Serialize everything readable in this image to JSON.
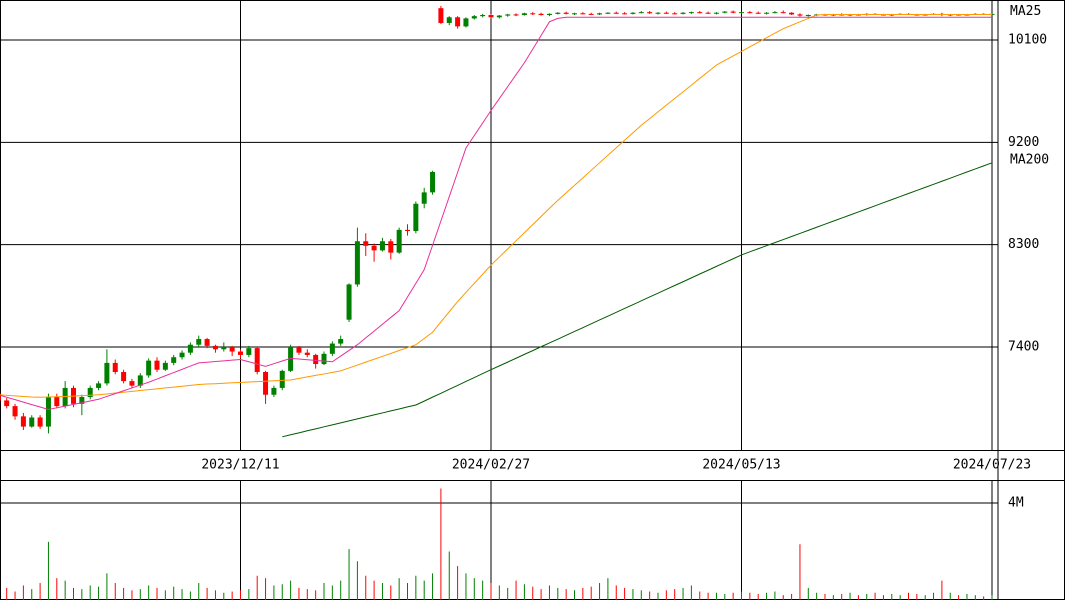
{
  "chart_data": {
    "type": "candlestick",
    "categories": [
      null,
      null,
      null,
      null,
      null,
      null,
      null,
      null,
      null,
      null,
      null,
      null,
      null,
      null,
      null,
      null,
      null,
      null,
      null,
      null,
      null,
      null,
      null,
      null,
      null,
      null,
      null,
      null,
      null,
      "2023/12/11",
      null,
      null,
      null,
      null,
      null,
      null,
      null,
      null,
      null,
      null,
      null,
      null,
      null,
      null,
      null,
      null,
      null,
      null,
      null,
      null,
      null,
      null,
      null,
      null,
      null,
      null,
      null,
      null,
      null,
      "2024/02/27",
      null,
      null,
      null,
      null,
      null,
      null,
      null,
      null,
      null,
      null,
      null,
      null,
      null,
      null,
      null,
      null,
      null,
      null,
      null,
      null,
      null,
      null,
      null,
      null,
      null,
      null,
      null,
      null,
      null,
      "2024/05/13",
      null,
      null,
      null,
      null,
      null,
      null,
      null,
      null,
      null,
      null,
      null,
      null,
      null,
      null,
      null,
      null,
      null,
      null,
      null,
      null,
      null,
      null,
      null,
      null,
      null,
      null,
      null,
      null,
      null,
      "2024/07/23"
    ],
    "up_color": "#008000",
    "down_color": "#ff0000",
    "ohlc": [
      [
        6990,
        7010,
        6900,
        6930
      ],
      [
        6930,
        6950,
        6860,
        6880
      ],
      [
        6880,
        6900,
        6760,
        6790
      ],
      [
        6790,
        6820,
        6670,
        6700
      ],
      [
        6700,
        6800,
        6690,
        6780
      ],
      [
        6780,
        6800,
        6680,
        6700
      ],
      [
        6700,
        6990,
        6640,
        6960
      ],
      [
        6960,
        6990,
        6860,
        6880
      ],
      [
        6880,
        7100,
        6860,
        7040
      ],
      [
        7040,
        7060,
        6870,
        6900
      ],
      [
        6900,
        6980,
        6800,
        6960
      ],
      [
        6960,
        7060,
        6940,
        7040
      ],
      [
        7040,
        7100,
        7020,
        7080
      ],
      [
        7080,
        7380,
        7060,
        7260
      ],
      [
        7260,
        7290,
        7160,
        7180
      ],
      [
        7180,
        7200,
        7080,
        7100
      ],
      [
        7100,
        7120,
        7040,
        7060
      ],
      [
        7060,
        7170,
        7040,
        7150
      ],
      [
        7150,
        7300,
        7130,
        7280
      ],
      [
        7280,
        7310,
        7180,
        7200
      ],
      [
        7200,
        7280,
        7190,
        7260
      ],
      [
        7260,
        7330,
        7240,
        7310
      ],
      [
        7310,
        7370,
        7290,
        7350
      ],
      [
        7350,
        7440,
        7330,
        7420
      ],
      [
        7420,
        7500,
        7400,
        7470
      ],
      [
        7470,
        7480,
        7390,
        7410
      ],
      [
        7410,
        7420,
        7350,
        7380
      ],
      [
        7380,
        7440,
        7360,
        7400
      ],
      [
        7400,
        7410,
        7320,
        7360
      ],
      [
        7360,
        7380,
        7300,
        7330
      ],
      [
        7330,
        7410,
        7310,
        7390
      ],
      [
        7390,
        7400,
        7160,
        7180
      ],
      [
        7180,
        7190,
        6900,
        6980
      ],
      [
        6980,
        7060,
        6960,
        7040
      ],
      [
        7040,
        7200,
        7020,
        7190
      ],
      [
        7190,
        7420,
        7180,
        7400
      ],
      [
        7400,
        7410,
        7330,
        7350
      ],
      [
        7350,
        7380,
        7310,
        7330
      ],
      [
        7330,
        7340,
        7210,
        7250
      ],
      [
        7250,
        7360,
        7240,
        7340
      ],
      [
        7340,
        7450,
        7320,
        7430
      ],
      [
        7430,
        7500,
        7410,
        7470
      ],
      [
        7640,
        7960,
        7620,
        7950
      ],
      [
        7950,
        8450,
        7930,
        8330
      ],
      [
        8330,
        8400,
        8200,
        8290
      ],
      [
        8290,
        8310,
        8150,
        8250
      ],
      [
        8250,
        8360,
        8240,
        8330
      ],
      [
        8330,
        8350,
        8170,
        8230
      ],
      [
        8230,
        8450,
        8220,
        8430
      ],
      [
        8430,
        8480,
        8380,
        8420
      ],
      [
        8420,
        8680,
        8400,
        8660
      ],
      [
        8660,
        8800,
        8620,
        8760
      ],
      [
        8760,
        8950,
        8740,
        8940
      ],
      [
        10380,
        10400,
        10240,
        10250
      ],
      [
        10250,
        10310,
        10230,
        10300
      ],
      [
        10300,
        10310,
        10200,
        10220
      ],
      [
        10220,
        10300,
        10210,
        10290
      ],
      [
        10290,
        10320,
        10280,
        10310
      ],
      [
        10310,
        10330,
        10300,
        10320
      ],
      [
        10320,
        10330,
        10290,
        10300
      ],
      [
        10300,
        10320,
        10290,
        10315
      ],
      [
        10315,
        10330,
        10305,
        10325
      ],
      [
        10325,
        10335,
        10310,
        10320
      ],
      [
        10320,
        10340,
        10315,
        10335
      ],
      [
        10335,
        10345,
        10320,
        10330
      ],
      [
        10330,
        10340,
        10315,
        10320
      ],
      [
        10320,
        10335,
        10310,
        10330
      ],
      [
        10330,
        10345,
        10325,
        10340
      ],
      [
        10340,
        10350,
        10325,
        10330
      ],
      [
        10330,
        10340,
        10320,
        10335
      ],
      [
        10335,
        10345,
        10325,
        10330
      ],
      [
        10330,
        10340,
        10320,
        10325
      ],
      [
        10325,
        10340,
        10320,
        10335
      ],
      [
        10335,
        10345,
        10330,
        10340
      ],
      [
        10340,
        10350,
        10330,
        10335
      ],
      [
        10335,
        10345,
        10325,
        10330
      ],
      [
        10330,
        10345,
        10325,
        10340
      ],
      [
        10340,
        10355,
        10335,
        10345
      ],
      [
        10345,
        10355,
        10330,
        10335
      ],
      [
        10335,
        10345,
        10325,
        10340
      ],
      [
        10340,
        10350,
        10330,
        10335
      ],
      [
        10335,
        10345,
        10325,
        10330
      ],
      [
        10330,
        10345,
        10325,
        10340
      ],
      [
        10340,
        10350,
        10330,
        10345
      ],
      [
        10345,
        10355,
        10335,
        10340
      ],
      [
        10340,
        10350,
        10330,
        10335
      ],
      [
        10335,
        10345,
        10325,
        10340
      ],
      [
        10340,
        10355,
        10335,
        10350
      ],
      [
        10350,
        10360,
        10335,
        10340
      ],
      [
        10340,
        10350,
        10330,
        10345
      ],
      [
        10345,
        10355,
        10335,
        10340
      ],
      [
        10340,
        10350,
        10330,
        10335
      ],
      [
        10335,
        10345,
        10325,
        10340
      ],
      [
        10340,
        10355,
        10335,
        10345
      ],
      [
        10345,
        10360,
        10335,
        10340
      ],
      [
        10340,
        10345,
        10320,
        10325
      ],
      [
        10325,
        10335,
        10305,
        10315
      ],
      [
        10315,
        10325,
        10305,
        10320
      ],
      [
        10320,
        10330,
        10310,
        10325
      ],
      [
        10325,
        10330,
        10315,
        10320
      ],
      [
        10320,
        10330,
        10310,
        10325
      ],
      [
        10325,
        10335,
        10315,
        10320
      ],
      [
        10320,
        10330,
        10310,
        10325
      ],
      [
        10325,
        10330,
        10315,
        10320
      ],
      [
        10320,
        10335,
        10315,
        10330
      ],
      [
        10330,
        10335,
        10320,
        10325
      ],
      [
        10325,
        10330,
        10315,
        10320
      ],
      [
        10320,
        10330,
        10310,
        10325
      ],
      [
        10325,
        10335,
        10320,
        10330
      ],
      [
        10330,
        10335,
        10320,
        10325
      ],
      [
        10325,
        10330,
        10315,
        10320
      ],
      [
        10320,
        10330,
        10315,
        10325
      ],
      [
        10325,
        10335,
        10320,
        10330
      ],
      [
        10330,
        10340,
        10310,
        10320
      ],
      [
        10320,
        10330,
        10310,
        10325
      ],
      [
        10325,
        10330,
        10315,
        10320
      ],
      [
        10320,
        10330,
        10315,
        10325
      ],
      [
        10325,
        10335,
        10320,
        10330
      ],
      [
        10330,
        10335,
        10320,
        10325
      ],
      [
        10325,
        10335,
        10320,
        10330
      ]
    ],
    "series": [
      {
        "name": "MA25",
        "color": "#ff9900",
        "values": [
          6980,
          6975,
          6970,
          6965,
          6960,
          6958,
          6960,
          6962,
          6965,
          6968,
          6972,
          6976,
          6980,
          6987,
          6995,
          7002,
          7010,
          7017,
          7025,
          7032,
          7040,
          7047,
          7055,
          7062,
          7070,
          7074,
          7077,
          7081,
          7085,
          7088,
          7092,
          7095,
          7099,
          7103,
          7106,
          7110,
          7123,
          7137,
          7150,
          7163,
          7177,
          7190,
          7216,
          7241,
          7267,
          7292,
          7318,
          7343,
          7369,
          7394,
          7420,
          7475,
          7530,
          7620,
          7710,
          7800,
          7880,
          7960,
          8040,
          8120,
          8191,
          8263,
          8334,
          8405,
          8476,
          8548,
          8619,
          8690,
          8756,
          8822,
          8888,
          8954,
          9020,
          9086,
          9152,
          9218,
          9284,
          9350,
          9409,
          9468,
          9527,
          9586,
          9644,
          9703,
          9762,
          9821,
          9880,
          9920,
          9960,
          10000,
          10040,
          10080,
          10120,
          10160,
          10200,
          10230,
          10260,
          10290,
          10320,
          10325,
          10325,
          10325,
          10325,
          10325,
          10325,
          10325,
          10325,
          10325,
          10325,
          10325,
          10325,
          10325,
          10325,
          10325,
          10325,
          10325,
          10325,
          10325,
          10325,
          10325
        ]
      },
      {
        "name": "MA200",
        "color": "#005a00",
        "values": [
          null,
          null,
          null,
          null,
          null,
          null,
          null,
          null,
          null,
          null,
          null,
          null,
          null,
          null,
          null,
          null,
          null,
          null,
          null,
          null,
          null,
          null,
          null,
          null,
          null,
          null,
          null,
          null,
          null,
          null,
          null,
          null,
          null,
          null,
          6610,
          6628,
          6645,
          6663,
          6680,
          6698,
          6715,
          6733,
          6750,
          6768,
          6785,
          6803,
          6820,
          6838,
          6855,
          6873,
          6890,
          6924,
          6959,
          6993,
          7028,
          7062,
          7097,
          7131,
          7166,
          7200,
          7234,
          7267,
          7301,
          7335,
          7368,
          7402,
          7436,
          7469,
          7503,
          7537,
          7570,
          7604,
          7638,
          7671,
          7705,
          7739,
          7772,
          7806,
          7840,
          7873,
          7907,
          7941,
          7974,
          8008,
          8042,
          8075,
          8109,
          8143,
          8176,
          8210,
          8237,
          8264,
          8291,
          8318,
          8345,
          8372,
          8399,
          8426,
          8453,
          8480,
          8507,
          8534,
          8561,
          8588,
          8615,
          8642,
          8669,
          8696,
          8723,
          8750,
          8777,
          8804,
          8831,
          8858,
          8885,
          8912,
          8939,
          8966,
          8993,
          9020
        ]
      },
      {
        "color": "#e8309a",
        "values": [
          6980,
          6958,
          6937,
          6915,
          6893,
          6872,
          6850,
          6865,
          6880,
          6895,
          6910,
          6925,
          6940,
          6965,
          6990,
          7015,
          7040,
          7065,
          7090,
          7118,
          7147,
          7175,
          7203,
          7232,
          7260,
          7266,
          7272,
          7278,
          7284,
          7290,
          7270,
          7250,
          7230,
          7253,
          7277,
          7300,
          7294,
          7288,
          7282,
          7276,
          7270,
          7320,
          7370,
          7420,
          7480,
          7540,
          7600,
          7660,
          7720,
          7840,
          7960,
          8080,
          8294,
          8508,
          8722,
          8936,
          9150,
          9260,
          9370,
          9480,
          9585,
          9690,
          9795,
          9900,
          10020,
          10140,
          10260,
          10290,
          10300,
          10300,
          10300,
          10300,
          10300,
          10300,
          10300,
          10300,
          10300,
          10300,
          10300,
          10300,
          10300,
          10300,
          10300,
          10300,
          10300,
          10300,
          10300,
          10300,
          10300,
          10300,
          10300,
          10300,
          10300,
          10300,
          10300,
          10300,
          10300,
          10300,
          10300,
          10300,
          10300,
          10300,
          10300,
          10300,
          10300,
          10300,
          10300,
          10300,
          10300,
          10300,
          10300,
          10300,
          10300,
          10300,
          10300,
          10300,
          10300,
          10300,
          10300,
          10300
        ]
      }
    ],
    "ylim": [
      6494,
      10452
    ],
    "yticks": [
      7400,
      8300,
      9200,
      10100
    ],
    "grid": true,
    "volume": {
      "values": [
        400000,
        500000,
        350000,
        600000,
        450000,
        700000,
        2400000,
        900000,
        800000,
        500000,
        450000,
        600000,
        550000,
        1100000,
        700000,
        500000,
        400000,
        450000,
        600000,
        500000,
        400000,
        550000,
        450000,
        350000,
        700000,
        500000,
        400000,
        300000,
        350000,
        400000,
        450000,
        1000000,
        900000,
        600000,
        650000,
        800000,
        500000,
        450000,
        400000,
        700000,
        600000,
        800000,
        2100000,
        1600000,
        1000000,
        800000,
        700000,
        600000,
        900000,
        700000,
        1000000,
        800000,
        1100000,
        4600000,
        2000000,
        1400000,
        1100000,
        900000,
        800000,
        700000,
        600000,
        500000,
        800000,
        650000,
        550000,
        450000,
        600000,
        500000,
        450000,
        400000,
        500000,
        550000,
        700000,
        900000,
        600000,
        500000,
        450000,
        400000,
        350000,
        300000,
        400000,
        450000,
        500000,
        600000,
        350000,
        300000,
        300000,
        250000,
        300000,
        350000,
        300000,
        250000,
        300000,
        350000,
        200000,
        250000,
        2300000,
        500000,
        300000,
        250000,
        200000,
        250000,
        300000,
        200000,
        250000,
        300000,
        200000,
        250000,
        200000,
        300000,
        250000,
        200000,
        300000,
        800000,
        300000,
        200000,
        250000,
        200000,
        150000,
        200000
      ],
      "ylim": [
        0,
        4950000
      ],
      "yticks": [
        {
          "value": 4000000,
          "label": "4M"
        }
      ]
    }
  }
}
